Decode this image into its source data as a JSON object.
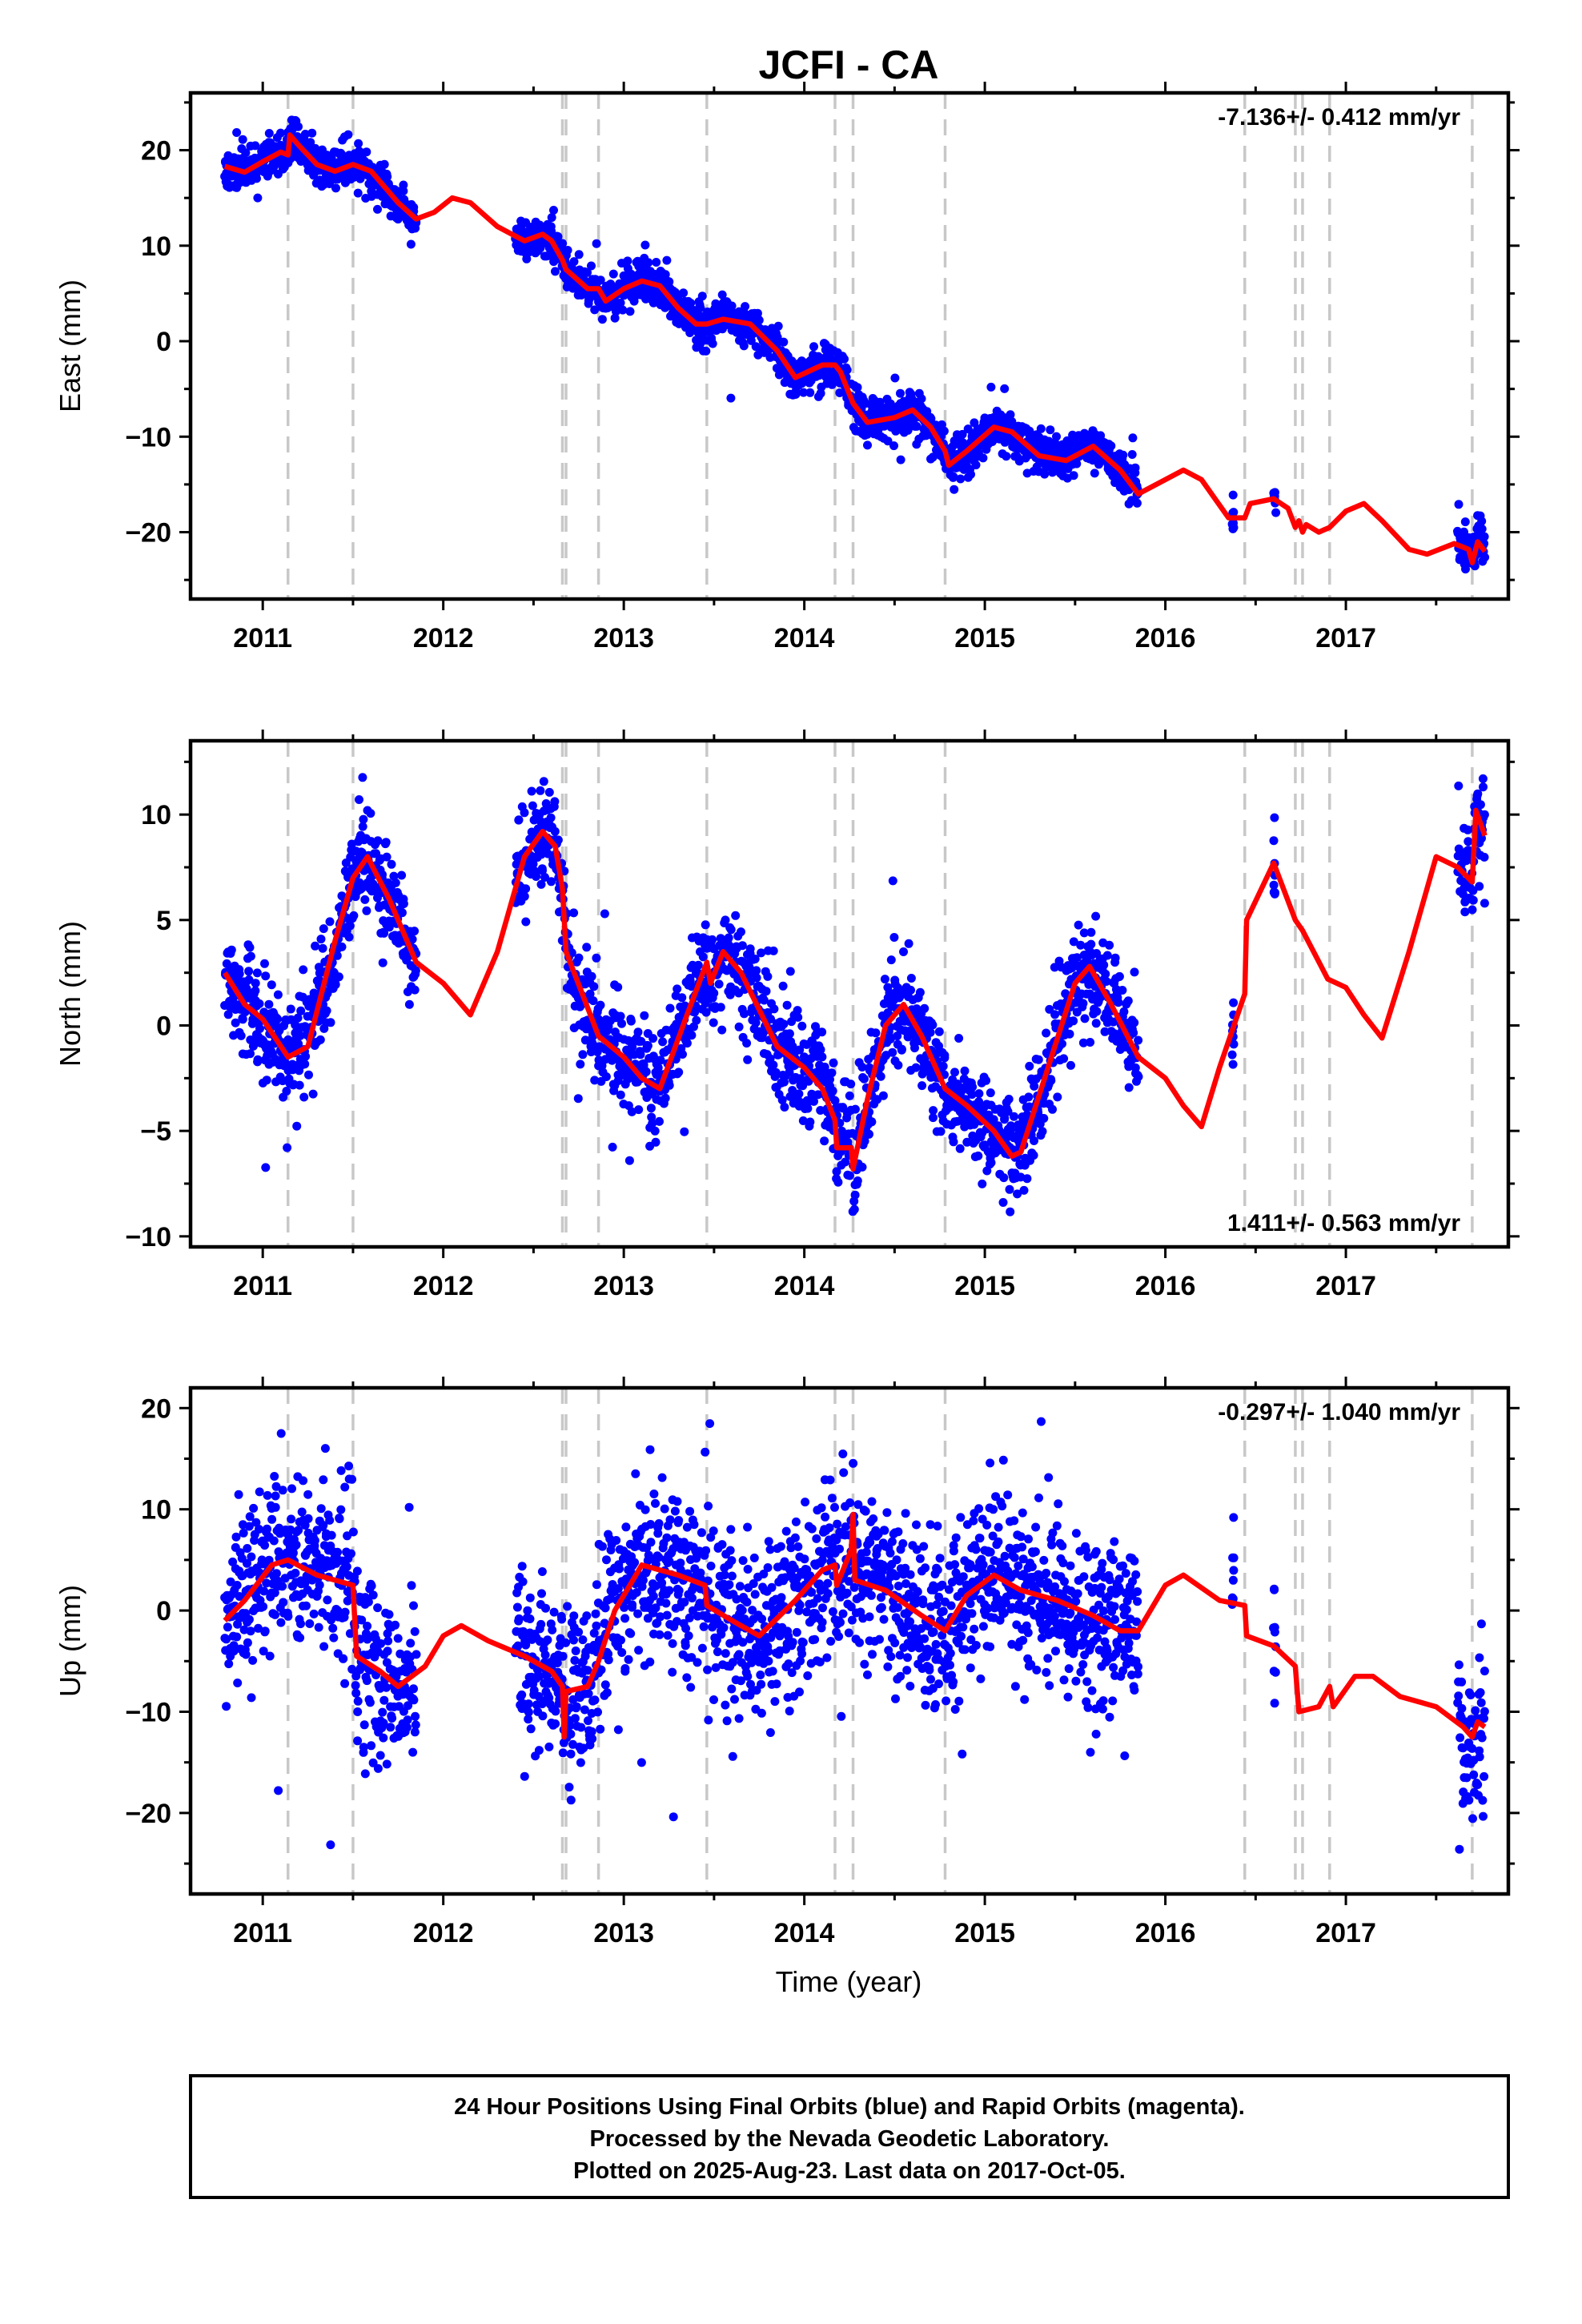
{
  "title": "JCFI - CA",
  "colors": {
    "points": "#0000ff",
    "model": "#ff0000",
    "offsets": "#c8c8c8",
    "frame": "#000000"
  },
  "xlabel": "Time (year)",
  "footer": {
    "line1": "24 Hour Positions Using Final Orbits (blue) and Rapid Orbits (magenta).",
    "line2": "Processed by the Nevada Geodetic Laboratory.",
    "line3": "Plotted on 2025-Aug-23. Last data on 2017-Oct-05."
  },
  "chart_data": [
    {
      "type": "scatter",
      "name": "East",
      "ylabel": "East (mm)",
      "rate_text": "-7.136+/- 0.412 mm/yr",
      "rate_position": "top-right",
      "xlim": [
        2010.6,
        2017.9
      ],
      "ylim": [
        -27,
        26
      ],
      "xticks": [
        2011,
        2012,
        2013,
        2014,
        2015,
        2016,
        2017
      ],
      "yticks": [
        -20,
        -10,
        0,
        10,
        20
      ],
      "offset_lines": [
        2011.14,
        2011.5,
        2012.66,
        2012.68,
        2012.86,
        2013.46,
        2014.17,
        2014.27,
        2014.78,
        2016.44,
        2016.72,
        2016.76,
        2016.91,
        2017.7
      ],
      "model_knots": [
        [
          2010.79,
          18.3
        ],
        [
          2010.9,
          17.7
        ],
        [
          2011.0,
          18.8
        ],
        [
          2011.1,
          19.8
        ],
        [
          2011.14,
          19.5
        ],
        [
          2011.15,
          21.6
        ],
        [
          2011.2,
          20.5
        ],
        [
          2011.3,
          18.5
        ],
        [
          2011.4,
          17.8
        ],
        [
          2011.5,
          18.5
        ],
        [
          2011.6,
          17.8
        ],
        [
          2011.75,
          14.5
        ],
        [
          2011.85,
          12.8
        ],
        [
          2011.95,
          13.5
        ],
        [
          2012.05,
          15.0
        ],
        [
          2012.15,
          14.5
        ],
        [
          2012.3,
          12.0
        ],
        [
          2012.45,
          10.5
        ],
        [
          2012.55,
          11.2
        ],
        [
          2012.6,
          10.5
        ],
        [
          2012.66,
          8.5
        ],
        [
          2012.68,
          7.5
        ],
        [
          2012.8,
          5.5
        ],
        [
          2012.86,
          5.5
        ],
        [
          2012.9,
          4.2
        ],
        [
          2013.0,
          5.5
        ],
        [
          2013.1,
          6.3
        ],
        [
          2013.2,
          5.8
        ],
        [
          2013.3,
          3.5
        ],
        [
          2013.4,
          1.8
        ],
        [
          2013.46,
          1.8
        ],
        [
          2013.55,
          2.3
        ],
        [
          2013.7,
          1.8
        ],
        [
          2013.85,
          -1.0
        ],
        [
          2013.95,
          -3.8
        ],
        [
          2014.1,
          -2.5
        ],
        [
          2014.17,
          -2.5
        ],
        [
          2014.2,
          -3.2
        ],
        [
          2014.27,
          -6.5
        ],
        [
          2014.35,
          -8.5
        ],
        [
          2014.5,
          -8.0
        ],
        [
          2014.6,
          -7.2
        ],
        [
          2014.7,
          -9.0
        ],
        [
          2014.78,
          -11.5
        ],
        [
          2014.8,
          -13.0
        ],
        [
          2014.9,
          -11.5
        ],
        [
          2015.05,
          -9.0
        ],
        [
          2015.15,
          -9.5
        ],
        [
          2015.3,
          -12.0
        ],
        [
          2015.45,
          -12.5
        ],
        [
          2015.6,
          -11.0
        ],
        [
          2015.75,
          -13.5
        ],
        [
          2015.85,
          -16.0
        ],
        [
          2015.95,
          -15.0
        ],
        [
          2016.1,
          -13.5
        ],
        [
          2016.2,
          -14.5
        ],
        [
          2016.35,
          -18.5
        ],
        [
          2016.44,
          -18.5
        ],
        [
          2016.47,
          -17.0
        ],
        [
          2016.6,
          -16.5
        ],
        [
          2016.68,
          -17.5
        ],
        [
          2016.72,
          -19.5
        ],
        [
          2016.74,
          -18.8
        ],
        [
          2016.76,
          -20.0
        ],
        [
          2016.78,
          -19.2
        ],
        [
          2016.85,
          -20.0
        ],
        [
          2016.91,
          -19.5
        ],
        [
          2017.0,
          -17.8
        ],
        [
          2017.1,
          -17.0
        ],
        [
          2017.2,
          -18.8
        ],
        [
          2017.35,
          -21.8
        ],
        [
          2017.45,
          -22.3
        ],
        [
          2017.6,
          -21.2
        ],
        [
          2017.68,
          -21.8
        ],
        [
          2017.7,
          -23.2
        ],
        [
          2017.73,
          -21.0
        ],
        [
          2017.77,
          -22.0
        ]
      ],
      "data_segments": [
        [
          2010.79,
          2011.85
        ],
        [
          2012.4,
          2015.85
        ],
        [
          2016.37,
          2016.38
        ],
        [
          2016.6,
          2016.61
        ],
        [
          2017.62,
          2017.77
        ]
      ],
      "noise_sd": 1.1,
      "n_points": 2100,
      "seed": 11
    },
    {
      "type": "scatter",
      "name": "North",
      "ylabel": "North (mm)",
      "rate_text": "1.411+/- 0.563 mm/yr",
      "rate_position": "bottom-right",
      "xlim": [
        2010.6,
        2017.9
      ],
      "ylim": [
        -10.5,
        13.5
      ],
      "xticks": [
        2011,
        2012,
        2013,
        2014,
        2015,
        2016,
        2017
      ],
      "yticks": [
        -10,
        -5,
        0,
        5,
        10
      ],
      "offset_lines": [
        2011.14,
        2011.5,
        2012.66,
        2012.68,
        2012.86,
        2013.46,
        2014.17,
        2014.27,
        2014.78,
        2016.44,
        2016.72,
        2016.76,
        2016.91,
        2017.7
      ],
      "model_knots": [
        [
          2010.79,
          2.5
        ],
        [
          2010.9,
          1.0
        ],
        [
          2011.0,
          0.3
        ],
        [
          2011.14,
          -1.5
        ],
        [
          2011.25,
          -1.0
        ],
        [
          2011.4,
          4.0
        ],
        [
          2011.5,
          7.0
        ],
        [
          2011.58,
          8.0
        ],
        [
          2011.7,
          6.0
        ],
        [
          2011.85,
          3.0
        ],
        [
          2012.0,
          2.0
        ],
        [
          2012.15,
          0.5
        ],
        [
          2012.3,
          3.5
        ],
        [
          2012.45,
          8.0
        ],
        [
          2012.55,
          9.2
        ],
        [
          2012.62,
          8.5
        ],
        [
          2012.66,
          6.5
        ],
        [
          2012.68,
          3.5
        ],
        [
          2012.86,
          -0.5
        ],
        [
          2013.0,
          -1.5
        ],
        [
          2013.1,
          -2.5
        ],
        [
          2013.2,
          -3.0
        ],
        [
          2013.35,
          0.5
        ],
        [
          2013.46,
          3.0
        ],
        [
          2013.48,
          2.0
        ],
        [
          2013.55,
          3.5
        ],
        [
          2013.65,
          2.5
        ],
        [
          2013.85,
          -1.0
        ],
        [
          2014.0,
          -2.0
        ],
        [
          2014.1,
          -3.0
        ],
        [
          2014.17,
          -4.5
        ],
        [
          2014.18,
          -5.8
        ],
        [
          2014.26,
          -5.8
        ],
        [
          2014.27,
          -6.8
        ],
        [
          2014.35,
          -3.5
        ],
        [
          2014.45,
          0.0
        ],
        [
          2014.55,
          1.0
        ],
        [
          2014.65,
          -0.5
        ],
        [
          2014.78,
          -3.0
        ],
        [
          2014.9,
          -3.8
        ],
        [
          2015.05,
          -5.0
        ],
        [
          2015.15,
          -6.2
        ],
        [
          2015.2,
          -6.0
        ],
        [
          2015.35,
          -2.0
        ],
        [
          2015.5,
          2.0
        ],
        [
          2015.58,
          2.8
        ],
        [
          2015.7,
          1.0
        ],
        [
          2015.85,
          -1.5
        ],
        [
          2016.0,
          -2.5
        ],
        [
          2016.1,
          -3.8
        ],
        [
          2016.2,
          -4.8
        ],
        [
          2016.3,
          -2.0
        ],
        [
          2016.44,
          1.5
        ],
        [
          2016.45,
          5.0
        ],
        [
          2016.6,
          7.7
        ],
        [
          2016.72,
          5.0
        ],
        [
          2016.76,
          4.5
        ],
        [
          2016.9,
          2.2
        ],
        [
          2017.0,
          1.8
        ],
        [
          2017.1,
          0.5
        ],
        [
          2017.2,
          -0.6
        ],
        [
          2017.35,
          3.5
        ],
        [
          2017.5,
          8.0
        ],
        [
          2017.62,
          7.5
        ],
        [
          2017.7,
          6.8
        ],
        [
          2017.72,
          10.2
        ],
        [
          2017.77,
          9.0
        ]
      ],
      "data_segments": [
        [
          2010.79,
          2011.85
        ],
        [
          2012.4,
          2015.85
        ],
        [
          2016.37,
          2016.38
        ],
        [
          2016.6,
          2016.61
        ],
        [
          2017.62,
          2017.77
        ]
      ],
      "noise_sd": 1.2,
      "n_points": 2100,
      "seed": 23
    },
    {
      "type": "scatter",
      "name": "Up",
      "ylabel": "Up (mm)",
      "rate_text": "-0.297+/- 1.040 mm/yr",
      "rate_position": "top-right",
      "xlim": [
        2010.6,
        2017.9
      ],
      "ylim": [
        -28,
        22
      ],
      "xticks": [
        2011,
        2012,
        2013,
        2014,
        2015,
        2016,
        2017
      ],
      "yticks": [
        -20,
        -10,
        0,
        10,
        20
      ],
      "offset_lines": [
        2011.14,
        2011.5,
        2012.66,
        2012.68,
        2012.86,
        2013.46,
        2014.17,
        2014.27,
        2014.78,
        2016.44,
        2016.72,
        2016.76,
        2016.91,
        2017.7
      ],
      "model_knots": [
        [
          2010.79,
          -1.0
        ],
        [
          2010.9,
          1.0
        ],
        [
          2011.05,
          4.5
        ],
        [
          2011.14,
          5.0
        ],
        [
          2011.3,
          3.5
        ],
        [
          2011.5,
          2.5
        ],
        [
          2011.52,
          -4.5
        ],
        [
          2011.65,
          -6.0
        ],
        [
          2011.75,
          -7.5
        ],
        [
          2011.9,
          -5.5
        ],
        [
          2012.0,
          -2.5
        ],
        [
          2012.1,
          -1.5
        ],
        [
          2012.25,
          -3.0
        ],
        [
          2012.45,
          -4.5
        ],
        [
          2012.6,
          -6.0
        ],
        [
          2012.66,
          -7.5
        ],
        [
          2012.67,
          -12.5
        ],
        [
          2012.68,
          -8.0
        ],
        [
          2012.8,
          -7.5
        ],
        [
          2012.86,
          -5.0
        ],
        [
          2012.95,
          0.0
        ],
        [
          2013.1,
          4.5
        ],
        [
          2013.3,
          3.5
        ],
        [
          2013.45,
          2.5
        ],
        [
          2013.46,
          0.5
        ],
        [
          2013.6,
          -1.0
        ],
        [
          2013.75,
          -2.5
        ],
        [
          2013.95,
          1.0
        ],
        [
          2014.1,
          4.0
        ],
        [
          2014.17,
          4.5
        ],
        [
          2014.18,
          2.5
        ],
        [
          2014.26,
          6.0
        ],
        [
          2014.27,
          9.5
        ],
        [
          2014.28,
          3.0
        ],
        [
          2014.45,
          2.0
        ],
        [
          2014.65,
          -0.5
        ],
        [
          2014.78,
          -2.0
        ],
        [
          2014.9,
          1.5
        ],
        [
          2015.05,
          3.5
        ],
        [
          2015.2,
          2.0
        ],
        [
          2015.4,
          1.0
        ],
        [
          2015.6,
          -0.5
        ],
        [
          2015.75,
          -2.0
        ],
        [
          2015.85,
          -2.0
        ],
        [
          2016.0,
          2.5
        ],
        [
          2016.1,
          3.5
        ],
        [
          2016.3,
          1.0
        ],
        [
          2016.44,
          0.5
        ],
        [
          2016.45,
          -2.5
        ],
        [
          2016.6,
          -3.5
        ],
        [
          2016.72,
          -5.5
        ],
        [
          2016.74,
          -10.0
        ],
        [
          2016.85,
          -9.5
        ],
        [
          2016.91,
          -7.5
        ],
        [
          2016.93,
          -9.5
        ],
        [
          2017.05,
          -6.5
        ],
        [
          2017.15,
          -6.5
        ],
        [
          2017.3,
          -8.5
        ],
        [
          2017.5,
          -9.5
        ],
        [
          2017.65,
          -11.5
        ],
        [
          2017.7,
          -12.5
        ],
        [
          2017.73,
          -11.0
        ],
        [
          2017.77,
          -11.5
        ]
      ],
      "data_segments": [
        [
          2010.79,
          2011.85
        ],
        [
          2012.4,
          2015.85
        ],
        [
          2016.37,
          2016.38
        ],
        [
          2016.6,
          2016.61
        ],
        [
          2017.62,
          2017.77
        ]
      ],
      "noise_sd": 4.2,
      "n_points": 2100,
      "seed": 37
    }
  ]
}
